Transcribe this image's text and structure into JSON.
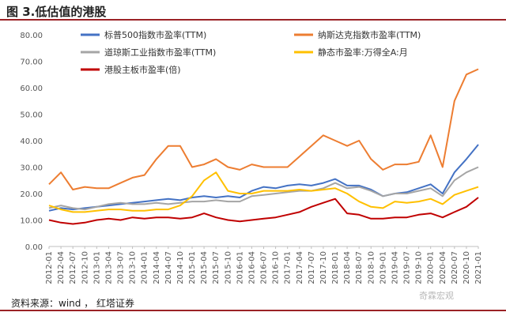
{
  "figure_title": "图 3.低估值的港股",
  "source_note": "资料来源：wind ， 红塔证券",
  "watermark": "奇霖宏观",
  "chart_data": {
    "type": "line",
    "title": "",
    "xlabel": "",
    "ylabel": "",
    "ylim": [
      0,
      80
    ],
    "y_ticks": [
      "0.00",
      "10.00",
      "20.00",
      "30.00",
      "40.00",
      "50.00",
      "60.00",
      "70.00",
      "80.00"
    ],
    "grid": false,
    "legend_placement": "top",
    "x_tick_labels": [
      "2012-01",
      "2012-04",
      "2012-07",
      "2012-10",
      "2013-01",
      "2013-04",
      "2013-07",
      "2013-10",
      "2014-01",
      "2014-04",
      "2014-07",
      "2014-10",
      "2015-01",
      "2015-04",
      "2015-07",
      "2015-10",
      "2016-01",
      "2016-04",
      "2016-07",
      "2016-10",
      "2017-01",
      "2017-04",
      "2017-07",
      "2017-10",
      "2018-01",
      "2018-04",
      "2018-07",
      "2018-10",
      "2019-01",
      "2019-04",
      "2019-07",
      "2019-10",
      "2020-01",
      "2020-04",
      "2020-07",
      "2020-10",
      "2021-01"
    ],
    "series": [
      {
        "name": "标普500指数市盈率(TTM)",
        "color": "#4472c4",
        "values": [
          13.5,
          14.5,
          14.0,
          14.5,
          15.0,
          15.5,
          16.0,
          16.5,
          17.0,
          17.5,
          18.0,
          17.5,
          18.5,
          19.0,
          18.5,
          19.0,
          18.5,
          21.0,
          22.5,
          22.0,
          23.0,
          23.5,
          23.0,
          24.0,
          25.5,
          23.0,
          23.0,
          21.5,
          19.0,
          20.0,
          20.5,
          22.0,
          23.5,
          20.0,
          28.0,
          33.0,
          38.5
        ]
      },
      {
        "name": "纳斯达克指数市盈率(TTM)",
        "color": "#ed7d31",
        "values": [
          23.5,
          28.0,
          21.5,
          22.5,
          22.0,
          22.0,
          24.0,
          26.0,
          27.0,
          33.0,
          38.0,
          38.0,
          30.0,
          31.0,
          33.0,
          30.0,
          29.0,
          31.0,
          30.0,
          30.0,
          30.0,
          34.0,
          38.0,
          42.0,
          40.0,
          38.0,
          40.0,
          33.0,
          29.0,
          31.0,
          31.0,
          32.0,
          42.0,
          30.0,
          55.0,
          65.0,
          67.0
        ]
      },
      {
        "name": "道琼斯工业指数市盈率(TTM)",
        "color": "#a5a5a5",
        "values": [
          14.5,
          15.5,
          14.5,
          14.0,
          15.0,
          16.0,
          16.5,
          16.0,
          16.0,
          16.5,
          16.0,
          16.5,
          17.0,
          17.0,
          17.5,
          17.0,
          17.0,
          19.0,
          19.5,
          20.0,
          20.5,
          21.0,
          21.0,
          22.0,
          24.0,
          22.0,
          22.5,
          21.0,
          19.0,
          20.0,
          20.0,
          21.0,
          22.0,
          19.0,
          25.0,
          28.0,
          30.0
        ]
      },
      {
        "name": "静态市盈率:万得全A:月",
        "color": "#ffc000",
        "values": [
          15.5,
          14.0,
          13.0,
          13.0,
          13.5,
          14.0,
          14.0,
          13.5,
          13.5,
          14.0,
          14.0,
          15.5,
          19.0,
          25.0,
          28.0,
          21.0,
          20.0,
          20.0,
          21.0,
          21.0,
          21.0,
          21.5,
          21.0,
          21.5,
          22.0,
          20.0,
          17.0,
          15.0,
          14.5,
          17.0,
          16.5,
          17.0,
          18.0,
          16.0,
          19.5,
          21.0,
          22.5
        ]
      },
      {
        "name": "港股主板市盈率(倍)",
        "color": "#c00000",
        "values": [
          10.0,
          9.0,
          8.5,
          9.0,
          10.0,
          10.5,
          10.0,
          11.0,
          10.5,
          11.0,
          11.0,
          10.5,
          11.0,
          12.5,
          11.0,
          10.0,
          9.5,
          10.0,
          10.5,
          11.0,
          12.0,
          13.0,
          15.0,
          16.5,
          18.0,
          12.5,
          12.0,
          10.5,
          10.5,
          11.0,
          11.0,
          12.0,
          12.5,
          11.0,
          13.0,
          15.0,
          18.5
        ]
      }
    ]
  }
}
